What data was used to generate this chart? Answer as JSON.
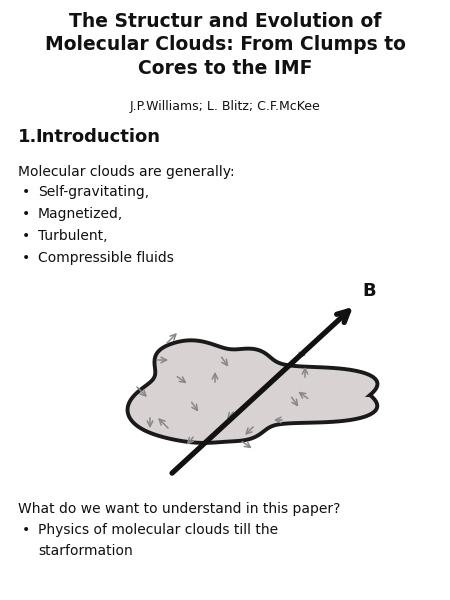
{
  "title": "The Structur and Evolution of\nMolecular Clouds: From Clumps to\nCores to the IMF",
  "authors": "J.P.Williams; L. Blitz; C.F.McKee",
  "section": "1.Introduction",
  "body_intro": "Molecular clouds are generally:",
  "bullets1": [
    "Self-gravitating,",
    "Magnetized,",
    "Turbulent,",
    "Compressible fluids"
  ],
  "body2": "What do we want to understand in this paper?",
  "bullet2": "Physics of molecular clouds till the\nstarformation",
  "bg_color": "#ffffff",
  "title_fontsize": 13.5,
  "author_fontsize": 9,
  "section_fontsize": 13,
  "body_fontsize": 10,
  "cloud_fill": "#d8d2d2",
  "cloud_edge": "#1a1a1a",
  "arrow_color": "#888888",
  "b_arrow_color": "#111111"
}
